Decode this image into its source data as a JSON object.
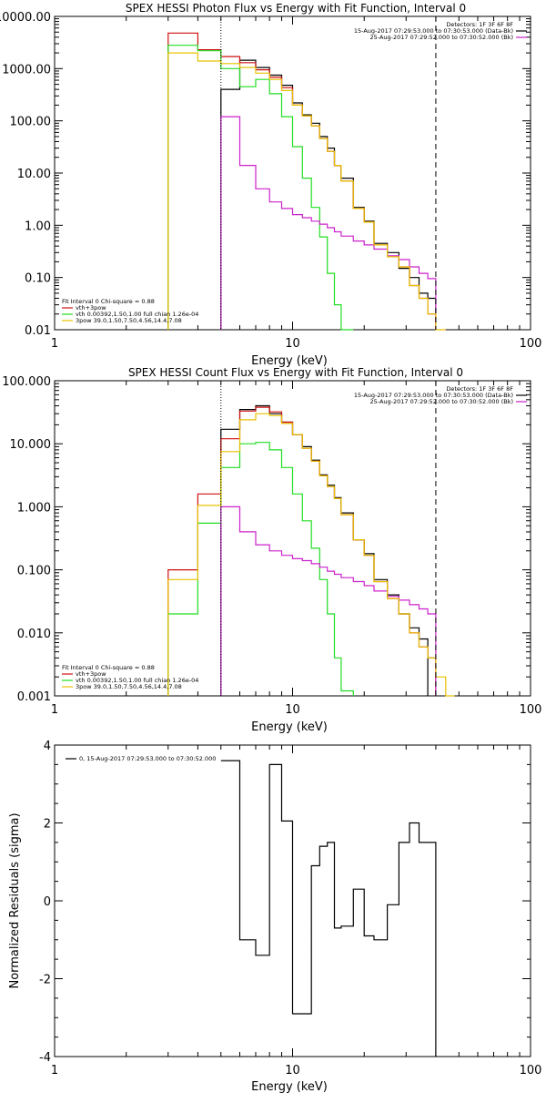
{
  "colors": {
    "black": "#000000",
    "red": "#d01010",
    "green": "#22dd22",
    "magenta": "#cc22cc",
    "yellow": "#e8c000"
  },
  "chart_data": [
    {
      "type": "line",
      "title": "SPEX HESSI Photon Flux vs Energy with Fit Function, Interval 0",
      "xlabel": "Energy (keV)",
      "ylabel": "",
      "xscale": "log",
      "yscale": "log",
      "xlim": [
        1,
        100
      ],
      "ylim": [
        0.01,
        10000
      ],
      "xticks": [
        "1",
        "10",
        "100"
      ],
      "yticks": [
        "10000.00",
        "1000.00",
        "100.00",
        "10.00",
        "1.00",
        "0.10",
        "0.01"
      ],
      "legend_top": [
        "Detectors: 1F 3F 6F 8F",
        "15-Aug-2017 07:29:53.000 to 07:30:53.000 (Data-Bk)",
        "25-Aug-2017 07:29:52.000 to 07:30:52.000 (Bk)"
      ],
      "legend_bottom": [
        "Fit Interval 0   Chi-square = 0.88",
        "vth+3pow",
        "vth 0.00392,1.50,1.00  full chian 1.26e-04",
        "3pow 39.0,1.50,7.50,4.56,14.4,7.08"
      ],
      "vlines": [
        {
          "x": 5.0,
          "style": "dotted"
        },
        {
          "x": 40.0,
          "style": "dashed"
        }
      ],
      "edges": [
        3.0,
        4.0,
        5.0,
        6.0,
        7.0,
        8.0,
        9.0,
        10.0,
        11.0,
        12.0,
        13.0,
        14.0,
        15.0,
        16.0,
        18.0,
        20.0,
        22.0,
        25.0,
        28.0,
        31.0,
        34.0,
        37.0,
        40.0,
        44.0,
        48.0
      ],
      "series": [
        {
          "color": "black",
          "values": [
            null,
            null,
            400,
            1450,
            1050,
            750,
            480,
            220,
            130,
            90,
            50,
            30,
            14,
            8,
            2.2,
            1.2,
            0.45,
            0.3,
            0.15,
            0.1,
            0.05,
            0.04
          ]
        },
        {
          "color": "red",
          "values": [
            4800,
            2300,
            1700,
            1300,
            950,
            680,
            430,
            200,
            125,
            80,
            46,
            26,
            14,
            7,
            2.1,
            1.15,
            0.42,
            0.25,
            0.16,
            0.07,
            0.04,
            0.02
          ]
        },
        {
          "color": "green",
          "values": [
            2800,
            2200,
            1000,
            450,
            620,
            330,
            120,
            32,
            8,
            2.2,
            0.6,
            0.12,
            0.03,
            0.01
          ]
        },
        {
          "color": "magenta",
          "values": [
            null,
            null,
            120,
            14,
            5,
            2.8,
            2.1,
            1.6,
            1.4,
            1.2,
            1.05,
            0.9,
            0.75,
            0.62,
            0.5,
            0.42,
            0.35,
            0.26,
            0.22,
            0.16,
            0.12,
            0.095
          ]
        },
        {
          "color": "yellow",
          "values": [
            2000,
            1400,
            1250,
            1050,
            820,
            620,
            380,
            200,
            125,
            80,
            46,
            26,
            14,
            7,
            2.1,
            1.15,
            0.42,
            0.25,
            0.16,
            0.07,
            0.04,
            0.02,
            0.01
          ]
        }
      ]
    },
    {
      "type": "line",
      "title": "SPEX HESSI Count Flux vs Energy with Fit Function, Interval 0",
      "xlabel": "Energy (keV)",
      "ylabel": "",
      "xscale": "log",
      "yscale": "log",
      "xlim": [
        1,
        100
      ],
      "ylim": [
        0.001,
        100
      ],
      "xticks": [
        "1",
        "10",
        "100"
      ],
      "yticks": [
        "100.000",
        "10.000",
        "1.000",
        "0.100",
        "0.010",
        "0.001"
      ],
      "legend_top": [
        "Detectors: 1F 3F 6F 8F",
        "15-Aug-2017 07:29:53.000 to 07:30:53.000 (Data-Bk)",
        "25-Aug-2017 07:29:52.000 to 07:30:52.000 (Bk)"
      ],
      "legend_bottom": [
        "Fit Interval 0   Chi-square = 0.88",
        "vth+3pow",
        "vth 0.00392,1.50,1.00  full chian 1.26e-04",
        "3pow 39.0,1.50,7.50,4.56,14.4,7.08"
      ],
      "vlines": [
        {
          "x": 5.0,
          "style": "dotted"
        },
        {
          "x": 40.0,
          "style": "dashed"
        }
      ],
      "edges": [
        3.0,
        4.0,
        5.0,
        6.0,
        7.0,
        8.0,
        9.0,
        10.0,
        11.0,
        12.0,
        13.0,
        14.0,
        15.0,
        16.0,
        18.0,
        20.0,
        22.0,
        25.0,
        28.0,
        31.0,
        34.0,
        37.0,
        40.0,
        44.0,
        48.0
      ],
      "series": [
        {
          "color": "black",
          "values": [
            null,
            null,
            17,
            35,
            40,
            30,
            22,
            14,
            9,
            5.5,
            3.2,
            2.2,
            1.4,
            0.8,
            0.3,
            0.18,
            0.07,
            0.04,
            0.02,
            0.012,
            0.008
          ]
        },
        {
          "color": "red",
          "values": [
            0.1,
            1.6,
            12,
            33,
            38,
            32,
            22,
            14,
            8.5,
            5.3,
            3.1,
            2.1,
            1.35,
            0.75,
            0.3,
            0.17,
            0.065,
            0.035,
            0.02,
            0.01,
            0.006,
            0.004
          ]
        },
        {
          "color": "green",
          "values": [
            0.02,
            0.55,
            4.2,
            10,
            10.5,
            8,
            4.2,
            1.6,
            0.6,
            0.22,
            0.07,
            0.02,
            0.004,
            0.0012
          ]
        },
        {
          "color": "magenta",
          "values": [
            null,
            null,
            1.0,
            0.4,
            0.25,
            0.2,
            0.17,
            0.15,
            0.14,
            0.125,
            0.11,
            0.095,
            0.085,
            0.075,
            0.065,
            0.056,
            0.046,
            0.038,
            0.033,
            0.028,
            0.024,
            0.02
          ]
        },
        {
          "color": "yellow",
          "values": [
            0.07,
            1.05,
            7.5,
            24,
            30,
            28,
            21,
            14,
            8.5,
            5.3,
            3.1,
            2.1,
            1.35,
            0.75,
            0.3,
            0.17,
            0.065,
            0.035,
            0.02,
            0.01,
            0.006,
            0.004,
            0.002,
            0.001
          ]
        }
      ]
    },
    {
      "type": "line",
      "title": "",
      "xlabel": "Energy (keV)",
      "ylabel": "Normalized Residuals (sigma)",
      "xscale": "log",
      "yscale": "linear",
      "xlim": [
        1,
        100
      ],
      "ylim": [
        -4,
        4
      ],
      "xticks": [
        "1",
        "10",
        "100"
      ],
      "yticks": [
        "4",
        "2",
        "0",
        "-2",
        "-4"
      ],
      "legend": [
        "0, 15-Aug-2017 07:29:53.000 to 07:30:52.000"
      ],
      "edges": [
        5.0,
        6.0,
        7.0,
        8.0,
        9.0,
        10.0,
        11.0,
        12.0,
        13.0,
        14.0,
        15.0,
        16.0,
        18.0,
        20.0,
        22.0,
        25.0,
        28.0,
        31.0,
        34.0,
        37.0,
        40.0
      ],
      "series": [
        {
          "color": "black",
          "values": [
            3.6,
            -1.0,
            -1.4,
            3.5,
            2.05,
            -2.9,
            -2.9,
            0.9,
            1.4,
            1.5,
            -0.7,
            -0.65,
            0.3,
            -0.9,
            -1.0,
            -0.1,
            1.5,
            2.0,
            1.5,
            1.5
          ]
        }
      ]
    }
  ]
}
